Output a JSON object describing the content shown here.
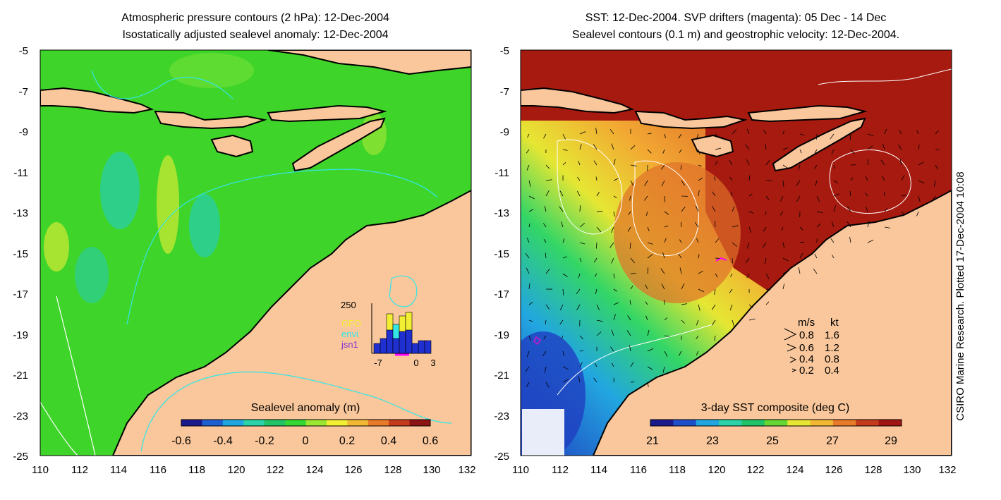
{
  "left_map": {
    "title_lines": [
      "Atmospheric pressure contours (2 hPa): 12-Dec-2004",
      "Isostatically adjusted sealevel anomaly: 12-Dec-2004"
    ],
    "y_ticks": [
      "-5",
      "-7",
      "-9",
      "-11",
      "-13",
      "-15",
      "-17",
      "-19",
      "-21",
      "-23",
      "-25"
    ],
    "x_ticks": [
      "110",
      "112",
      "114",
      "116",
      "118",
      "120",
      "122",
      "124",
      "126",
      "128",
      "130",
      "132"
    ],
    "colorbar": {
      "label": "Sealevel anomaly (m)",
      "tick_labels": [
        "-0.6",
        "-0.4",
        "-0.2",
        "0",
        "0.2",
        "0.4",
        "0.6"
      ],
      "colors": [
        "#1a1a8c",
        "#1f5fd0",
        "#22a6e0",
        "#2ad2a6",
        "#22c266",
        "#33d633",
        "#9ae633",
        "#f2ee33",
        "#f2b833",
        "#e87a2a",
        "#c43a1c",
        "#8c1414"
      ]
    },
    "inset": {
      "y_tick": "250",
      "x_ticks": [
        "-7",
        "0",
        "3"
      ],
      "legend": [
        {
          "label": "GFO",
          "color": "#f2ee33"
        },
        {
          "label": "envi",
          "color": "#33e6e6"
        },
        {
          "label": "jsn1",
          "color": "#8833cc"
        }
      ]
    }
  },
  "right_map": {
    "title_lines": [
      "SST: 12-Dec-2004. SVP drifters (magenta): 05 Dec - 14 Dec",
      "Sealevel contours (0.1 m) and geostrophic velocity: 12-Dec-2004."
    ],
    "y_ticks": [
      "-5",
      "-7",
      "-9",
      "-11",
      "-13",
      "-15",
      "-17",
      "-19",
      "-21",
      "-23",
      "-25"
    ],
    "x_ticks": [
      "110",
      "112",
      "114",
      "116",
      "118",
      "120",
      "122",
      "124",
      "126",
      "128",
      "130",
      "132"
    ],
    "colorbar": {
      "label": "3-day SST composite (deg C)",
      "tick_labels": [
        "21",
        "23",
        "25",
        "27",
        "29"
      ],
      "colors": [
        "#1a1a8c",
        "#1f4fc8",
        "#22a6e0",
        "#2ad2a6",
        "#22c266",
        "#66d633",
        "#e6e633",
        "#f2b833",
        "#e87a2a",
        "#c43a1c",
        "#a01414"
      ]
    },
    "velocity_key": {
      "headers": [
        "m/s",
        "kt"
      ],
      "rows": [
        {
          "ms": "0.8",
          "kt": "1.6"
        },
        {
          "ms": "0.6",
          "kt": "1.2"
        },
        {
          "ms": "0.4",
          "kt": "0.8"
        },
        {
          "ms": "0.2",
          "kt": "0.4"
        }
      ]
    }
  },
  "credit": "CSIRO Marine Research. Plotted 17-Dec-2004 10:08",
  "colors": {
    "land": "#f9c79b",
    "ocean_green": "#3fd42a",
    "sst_hot": "#a61a10",
    "coast": "#000000",
    "contour_cyan": "#33e6e6",
    "contour_white": "#ffffff"
  }
}
